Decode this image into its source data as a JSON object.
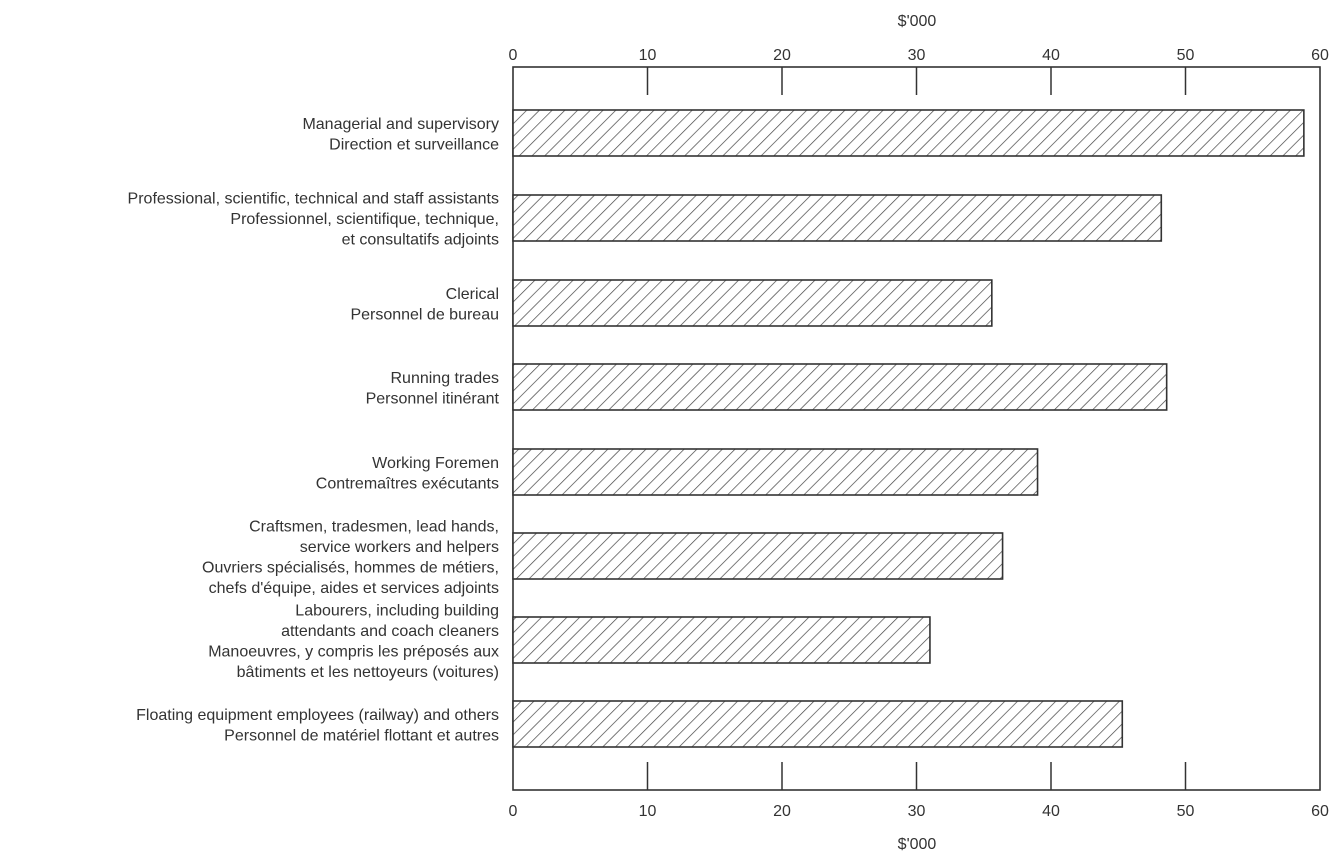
{
  "chart_data": {
    "type": "bar",
    "orientation": "horizontal",
    "x_axis_title_top": "$'000",
    "x_axis_title_bottom": "$'000",
    "xlim": [
      0,
      60
    ],
    "ticks": [
      "0",
      "10",
      "20",
      "30",
      "40",
      "50",
      "60"
    ],
    "tick_values": [
      0,
      10,
      20,
      30,
      40,
      50,
      60
    ],
    "categories": [
      [
        "Managerial and supervisory",
        "Direction et surveillance"
      ],
      [
        "Professional, scientific, technical and staff assistants",
        "Professionnel, scientifique, technique,",
        "et consultatifs adjoints"
      ],
      [
        "Clerical",
        "Personnel de bureau"
      ],
      [
        "Running trades",
        "Personnel itinérant"
      ],
      [
        "Working Foremen",
        "Contremaîtres exécutants"
      ],
      [
        "Craftsmen, tradesmen, lead hands,",
        "service workers and helpers",
        "Ouvriers spécialisés, hommes de métiers,",
        "chefs d'équipe, aides et services adjoints"
      ],
      [
        "Labourers, including building",
        "attendants and coach cleaners",
        "Manoeuvres, y compris les préposés aux",
        "bâtiments et les nettoyeurs (voitures)"
      ],
      [
        "Floating equipment employees (railway) and others",
        "Personnel de matériel flottant et autres"
      ]
    ],
    "values": [
      58.8,
      48.2,
      35.6,
      48.6,
      39.0,
      36.4,
      31.0,
      45.3
    ],
    "grid": false,
    "legend": "none",
    "bar_pattern": "diagonal-hatch"
  }
}
